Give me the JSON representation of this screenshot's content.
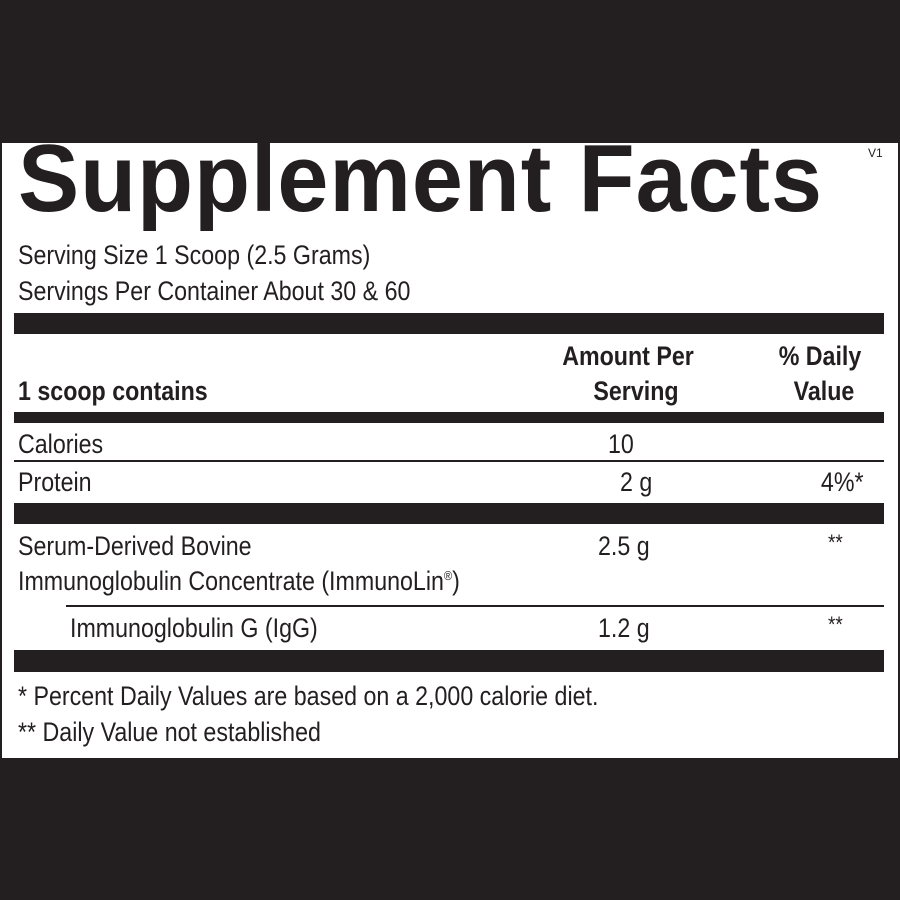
{
  "label": {
    "title": "Supplement Facts",
    "version": "V1",
    "serving_size": "Serving Size 1 Scoop (2.5 Grams)",
    "servings_per_container": "Servings Per Container About 30 & 60",
    "header": {
      "row_label": "1 scoop contains",
      "amount_line1": "Amount Per",
      "amount_line2": "Serving",
      "dv_line1": "% Daily",
      "dv_line2": "Value"
    },
    "rows": [
      {
        "name": "Calories",
        "amount": "10",
        "dv": ""
      },
      {
        "name": "Protein",
        "amount": "2 g",
        "dv": "4%*"
      },
      {
        "name_line1": "Serum-Derived Bovine",
        "name_line2": "Immunoglobulin Concentrate (ImmunoLin",
        "registered": "®",
        "name_line2_end": ")",
        "amount": "2.5 g",
        "dv": "**"
      },
      {
        "name": "Immunoglobulin G (IgG)",
        "amount": "1.2 g",
        "dv": "**"
      }
    ],
    "footnotes": [
      "* Percent Daily Values are based on a 2,000 calorie diet.",
      "** Daily Value not established"
    ]
  },
  "colors": {
    "ink": "#231f20",
    "background": "#231f20",
    "panel": "#ffffff"
  }
}
